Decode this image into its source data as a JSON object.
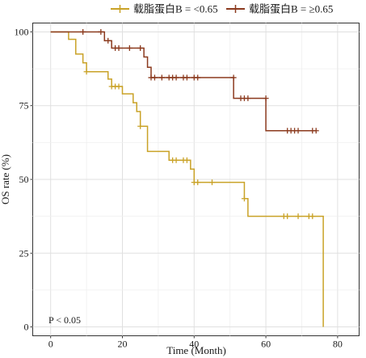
{
  "chart_data": {
    "type": "line",
    "title": "",
    "xlabel": "Time (Month)",
    "ylabel": "OS rate (%)",
    "xlim": [
      -5,
      86
    ],
    "ylim": [
      -3,
      103
    ],
    "xticks": [
      0,
      20,
      40,
      60,
      80
    ],
    "yticks": [
      0,
      25,
      50,
      75,
      100
    ],
    "grid": true,
    "legend_position": "top",
    "annotation": "P < 0.05",
    "series": [
      {
        "name": "载脂蛋白B = <0.65",
        "color": "#c9a227",
        "step": [
          {
            "x": 0,
            "y": 100
          },
          {
            "x": 5,
            "y": 97.5
          },
          {
            "x": 7,
            "y": 92.5
          },
          {
            "x": 9,
            "y": 89.5
          },
          {
            "x": 10,
            "y": 86.5
          },
          {
            "x": 16,
            "y": 84.0
          },
          {
            "x": 17,
            "y": 81.5
          },
          {
            "x": 20,
            "y": 79.0
          },
          {
            "x": 23,
            "y": 76.0
          },
          {
            "x": 24,
            "y": 73.0
          },
          {
            "x": 25,
            "y": 68.0
          },
          {
            "x": 27,
            "y": 59.5
          },
          {
            "x": 33,
            "y": 56.5
          },
          {
            "x": 39,
            "y": 53.5
          },
          {
            "x": 40,
            "y": 49.0
          },
          {
            "x": 54,
            "y": 43.5
          },
          {
            "x": 55,
            "y": 37.5
          },
          {
            "x": 76,
            "y": 0
          }
        ],
        "censored": [
          {
            "x": 10,
            "y": 86.5
          },
          {
            "x": 17,
            "y": 81.5
          },
          {
            "x": 18,
            "y": 81.5
          },
          {
            "x": 19,
            "y": 81.5
          },
          {
            "x": 25,
            "y": 68.0
          },
          {
            "x": 34,
            "y": 56.5
          },
          {
            "x": 35,
            "y": 56.5
          },
          {
            "x": 37,
            "y": 56.5
          },
          {
            "x": 38,
            "y": 56.5
          },
          {
            "x": 40,
            "y": 49.0
          },
          {
            "x": 41,
            "y": 49.0
          },
          {
            "x": 45,
            "y": 49.0
          },
          {
            "x": 54,
            "y": 43.5
          },
          {
            "x": 65,
            "y": 37.5
          },
          {
            "x": 66,
            "y": 37.5
          },
          {
            "x": 69,
            "y": 37.5
          },
          {
            "x": 72,
            "y": 37.5
          },
          {
            "x": 73,
            "y": 37.5
          }
        ]
      },
      {
        "name": "载脂蛋白B = ≥0.65",
        "color": "#8b3a1e",
        "step": [
          {
            "x": 0,
            "y": 100
          },
          {
            "x": 15,
            "y": 97.0
          },
          {
            "x": 17,
            "y": 94.5
          },
          {
            "x": 26,
            "y": 91.5
          },
          {
            "x": 27,
            "y": 88.0
          },
          {
            "x": 28,
            "y": 84.5
          },
          {
            "x": 51,
            "y": 77.5
          },
          {
            "x": 60,
            "y": 66.5
          },
          {
            "x": 74,
            "y": 66.5
          }
        ],
        "censored": [
          {
            "x": 9,
            "y": 100
          },
          {
            "x": 14,
            "y": 100
          },
          {
            "x": 16,
            "y": 97.0
          },
          {
            "x": 18,
            "y": 94.5
          },
          {
            "x": 19,
            "y": 94.5
          },
          {
            "x": 22,
            "y": 94.5
          },
          {
            "x": 25,
            "y": 94.5
          },
          {
            "x": 28,
            "y": 84.5
          },
          {
            "x": 29,
            "y": 84.5
          },
          {
            "x": 31,
            "y": 84.5
          },
          {
            "x": 33,
            "y": 84.5
          },
          {
            "x": 34,
            "y": 84.5
          },
          {
            "x": 35,
            "y": 84.5
          },
          {
            "x": 37,
            "y": 84.5
          },
          {
            "x": 38,
            "y": 84.5
          },
          {
            "x": 40,
            "y": 84.5
          },
          {
            "x": 41,
            "y": 84.5
          },
          {
            "x": 51,
            "y": 84.5
          },
          {
            "x": 53,
            "y": 77.5
          },
          {
            "x": 54,
            "y": 77.5
          },
          {
            "x": 55,
            "y": 77.5
          },
          {
            "x": 60,
            "y": 77.5
          },
          {
            "x": 66,
            "y": 66.5
          },
          {
            "x": 67,
            "y": 66.5
          },
          {
            "x": 68,
            "y": 66.5
          },
          {
            "x": 69,
            "y": 66.5
          },
          {
            "x": 73,
            "y": 66.5
          },
          {
            "x": 74,
            "y": 66.5
          }
        ]
      }
    ]
  }
}
